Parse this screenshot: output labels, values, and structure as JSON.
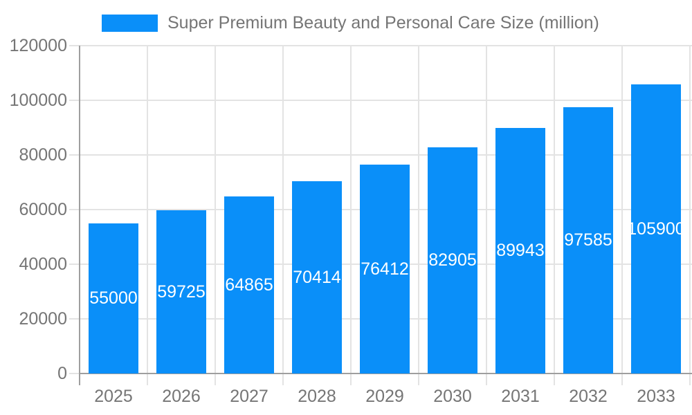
{
  "chart_data": {
    "type": "bar",
    "title": "Super Premium Beauty and Personal Care Size (million)",
    "legend_entries": [
      "Super Premium Beauty and Personal Care Size (million)"
    ],
    "legend_position": "top-left",
    "categories": [
      "2025",
      "2026",
      "2027",
      "2028",
      "2029",
      "2030",
      "2031",
      "2032",
      "2033"
    ],
    "values": [
      55000,
      59725,
      64865,
      70414,
      76412,
      82905,
      89943,
      97585,
      105900
    ],
    "value_labels_shown": true,
    "xlabel": "",
    "ylabel": "",
    "ylim": [
      0,
      120000
    ],
    "ytick_values": [
      0,
      20000,
      40000,
      60000,
      80000,
      100000,
      120000
    ],
    "ytick_labels": [
      "0",
      "20000",
      "40000",
      "60000",
      "80000",
      "100000",
      "120000"
    ],
    "grid": true,
    "colors": {
      "bar": "#0a8ff9",
      "grid": "#e3e3e3",
      "axis": "#9e9e9e",
      "tick_text": "#757575",
      "value_text": "#ffffff",
      "background": "#ffffff"
    }
  }
}
